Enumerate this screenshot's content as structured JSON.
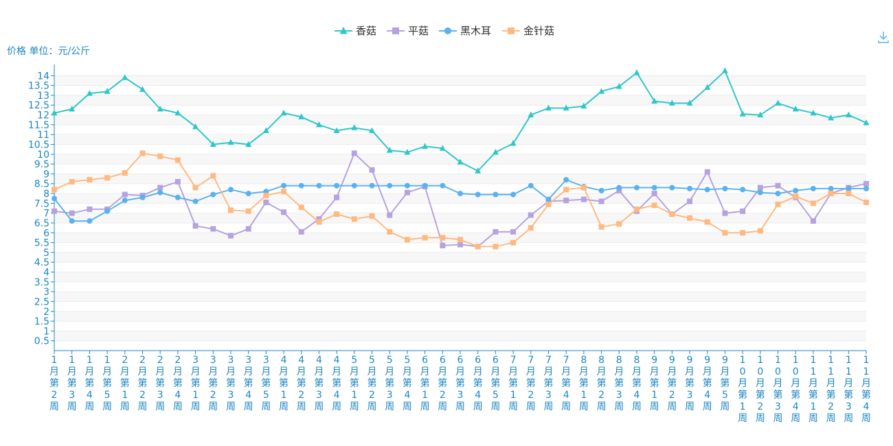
{
  "chart_data": {
    "type": "line",
    "unit_label": "价格 单位：元/公斤",
    "ylim": [
      0,
      14.5
    ],
    "y_ticks": [
      "0.5",
      "1",
      "1.5",
      "2",
      "2.5",
      "3",
      "3.5",
      "4",
      "4.5",
      "5",
      "5.5",
      "6",
      "6.5",
      "7",
      "7.5",
      "8",
      "8.5",
      "9",
      "9.5",
      "10",
      "10.5",
      "11",
      "11.5",
      "12",
      "12.5",
      "13",
      "13.5",
      "14"
    ],
    "grid": true,
    "legend_position": "top-center",
    "categories": [
      "1月第2周",
      "1月第3周",
      "1月第4周",
      "1月第5周",
      "2月第1周",
      "2月第2周",
      "2月第3周",
      "2月第4周",
      "3月第1周",
      "3月第2周",
      "3月第3周",
      "3月第4周",
      "3月第5周",
      "4月第1周",
      "4月第2周",
      "4月第3周",
      "4月第4周",
      "5月第1周",
      "5月第2周",
      "5月第3周",
      "5月第4周",
      "6月第1周",
      "6月第2周",
      "6月第3周",
      "6月第4周",
      "6月第5周",
      "7月第1周",
      "7月第2周",
      "7月第3周",
      "7月第4周",
      "8月第1周",
      "8月第2周",
      "8月第3周",
      "8月第4周",
      "9月第1周",
      "9月第2周",
      "9月第3周",
      "9月第4周",
      "9月第5周",
      "10月第1周",
      "10月第2周",
      "10月第3周",
      "10月第4周",
      "11月第1周",
      "11月第2周",
      "11月第3周",
      "11月第4周"
    ],
    "series": [
      {
        "name": "香菇",
        "color": "#2ec7c9",
        "marker": "triangle",
        "values": [
          12.1,
          12.3,
          13.1,
          13.2,
          13.9,
          13.3,
          12.3,
          12.1,
          11.4,
          10.5,
          10.6,
          10.5,
          11.2,
          12.1,
          11.9,
          11.5,
          11.2,
          11.35,
          11.2,
          10.2,
          10.1,
          10.4,
          10.3,
          9.6,
          9.15,
          10.1,
          10.55,
          12.0,
          12.35,
          12.35,
          12.45,
          13.2,
          13.45,
          14.15,
          12.7,
          12.6,
          12.6,
          13.4,
          14.25,
          12.05,
          12.0,
          12.6,
          12.3,
          12.1,
          11.85,
          12.0,
          11.6
        ]
      },
      {
        "name": "平菇",
        "color": "#b6a2de",
        "marker": "square",
        "values": [
          7.1,
          7.0,
          7.2,
          7.2,
          7.95,
          7.9,
          8.3,
          8.6,
          6.35,
          6.2,
          5.85,
          6.2,
          7.55,
          7.05,
          6.05,
          6.7,
          7.8,
          10.05,
          9.2,
          6.9,
          8.05,
          8.35,
          5.35,
          5.4,
          5.3,
          6.05,
          6.05,
          6.9,
          7.6,
          7.65,
          7.7,
          7.6,
          8.15,
          7.1,
          8.0,
          6.95,
          7.6,
          9.1,
          7.0,
          7.1,
          8.3,
          8.4,
          7.8,
          6.6,
          8.0,
          8.3,
          8.5
        ]
      },
      {
        "name": "黑木耳",
        "color": "#5ab1ef",
        "marker": "circle",
        "values": [
          7.75,
          6.6,
          6.6,
          7.1,
          7.65,
          7.8,
          8.05,
          7.8,
          7.6,
          7.95,
          8.2,
          8.0,
          8.1,
          8.4,
          8.4,
          8.4,
          8.4,
          8.4,
          8.4,
          8.4,
          8.4,
          8.4,
          8.4,
          8.0,
          7.95,
          7.95,
          7.95,
          8.4,
          7.7,
          8.7,
          8.35,
          8.15,
          8.3,
          8.3,
          8.3,
          8.3,
          8.25,
          8.2,
          8.25,
          8.2,
          8.05,
          8.0,
          8.15,
          8.25,
          8.25,
          8.25,
          8.25
        ]
      },
      {
        "name": "金针菇",
        "color": "#ffb980",
        "marker": "square",
        "values": [
          8.2,
          8.6,
          8.7,
          8.8,
          9.05,
          10.05,
          9.9,
          9.7,
          8.3,
          8.9,
          7.15,
          7.1,
          7.9,
          8.1,
          7.3,
          6.55,
          6.95,
          6.7,
          6.85,
          6.05,
          5.65,
          5.75,
          5.75,
          5.65,
          5.3,
          5.3,
          5.5,
          6.25,
          7.45,
          8.2,
          8.3,
          6.3,
          6.45,
          7.2,
          7.4,
          6.95,
          6.75,
          6.55,
          6.0,
          6.0,
          6.1,
          7.45,
          7.85,
          7.5,
          8.0,
          8.0,
          7.55
        ]
      }
    ]
  },
  "icons": {
    "download": "download-icon"
  }
}
